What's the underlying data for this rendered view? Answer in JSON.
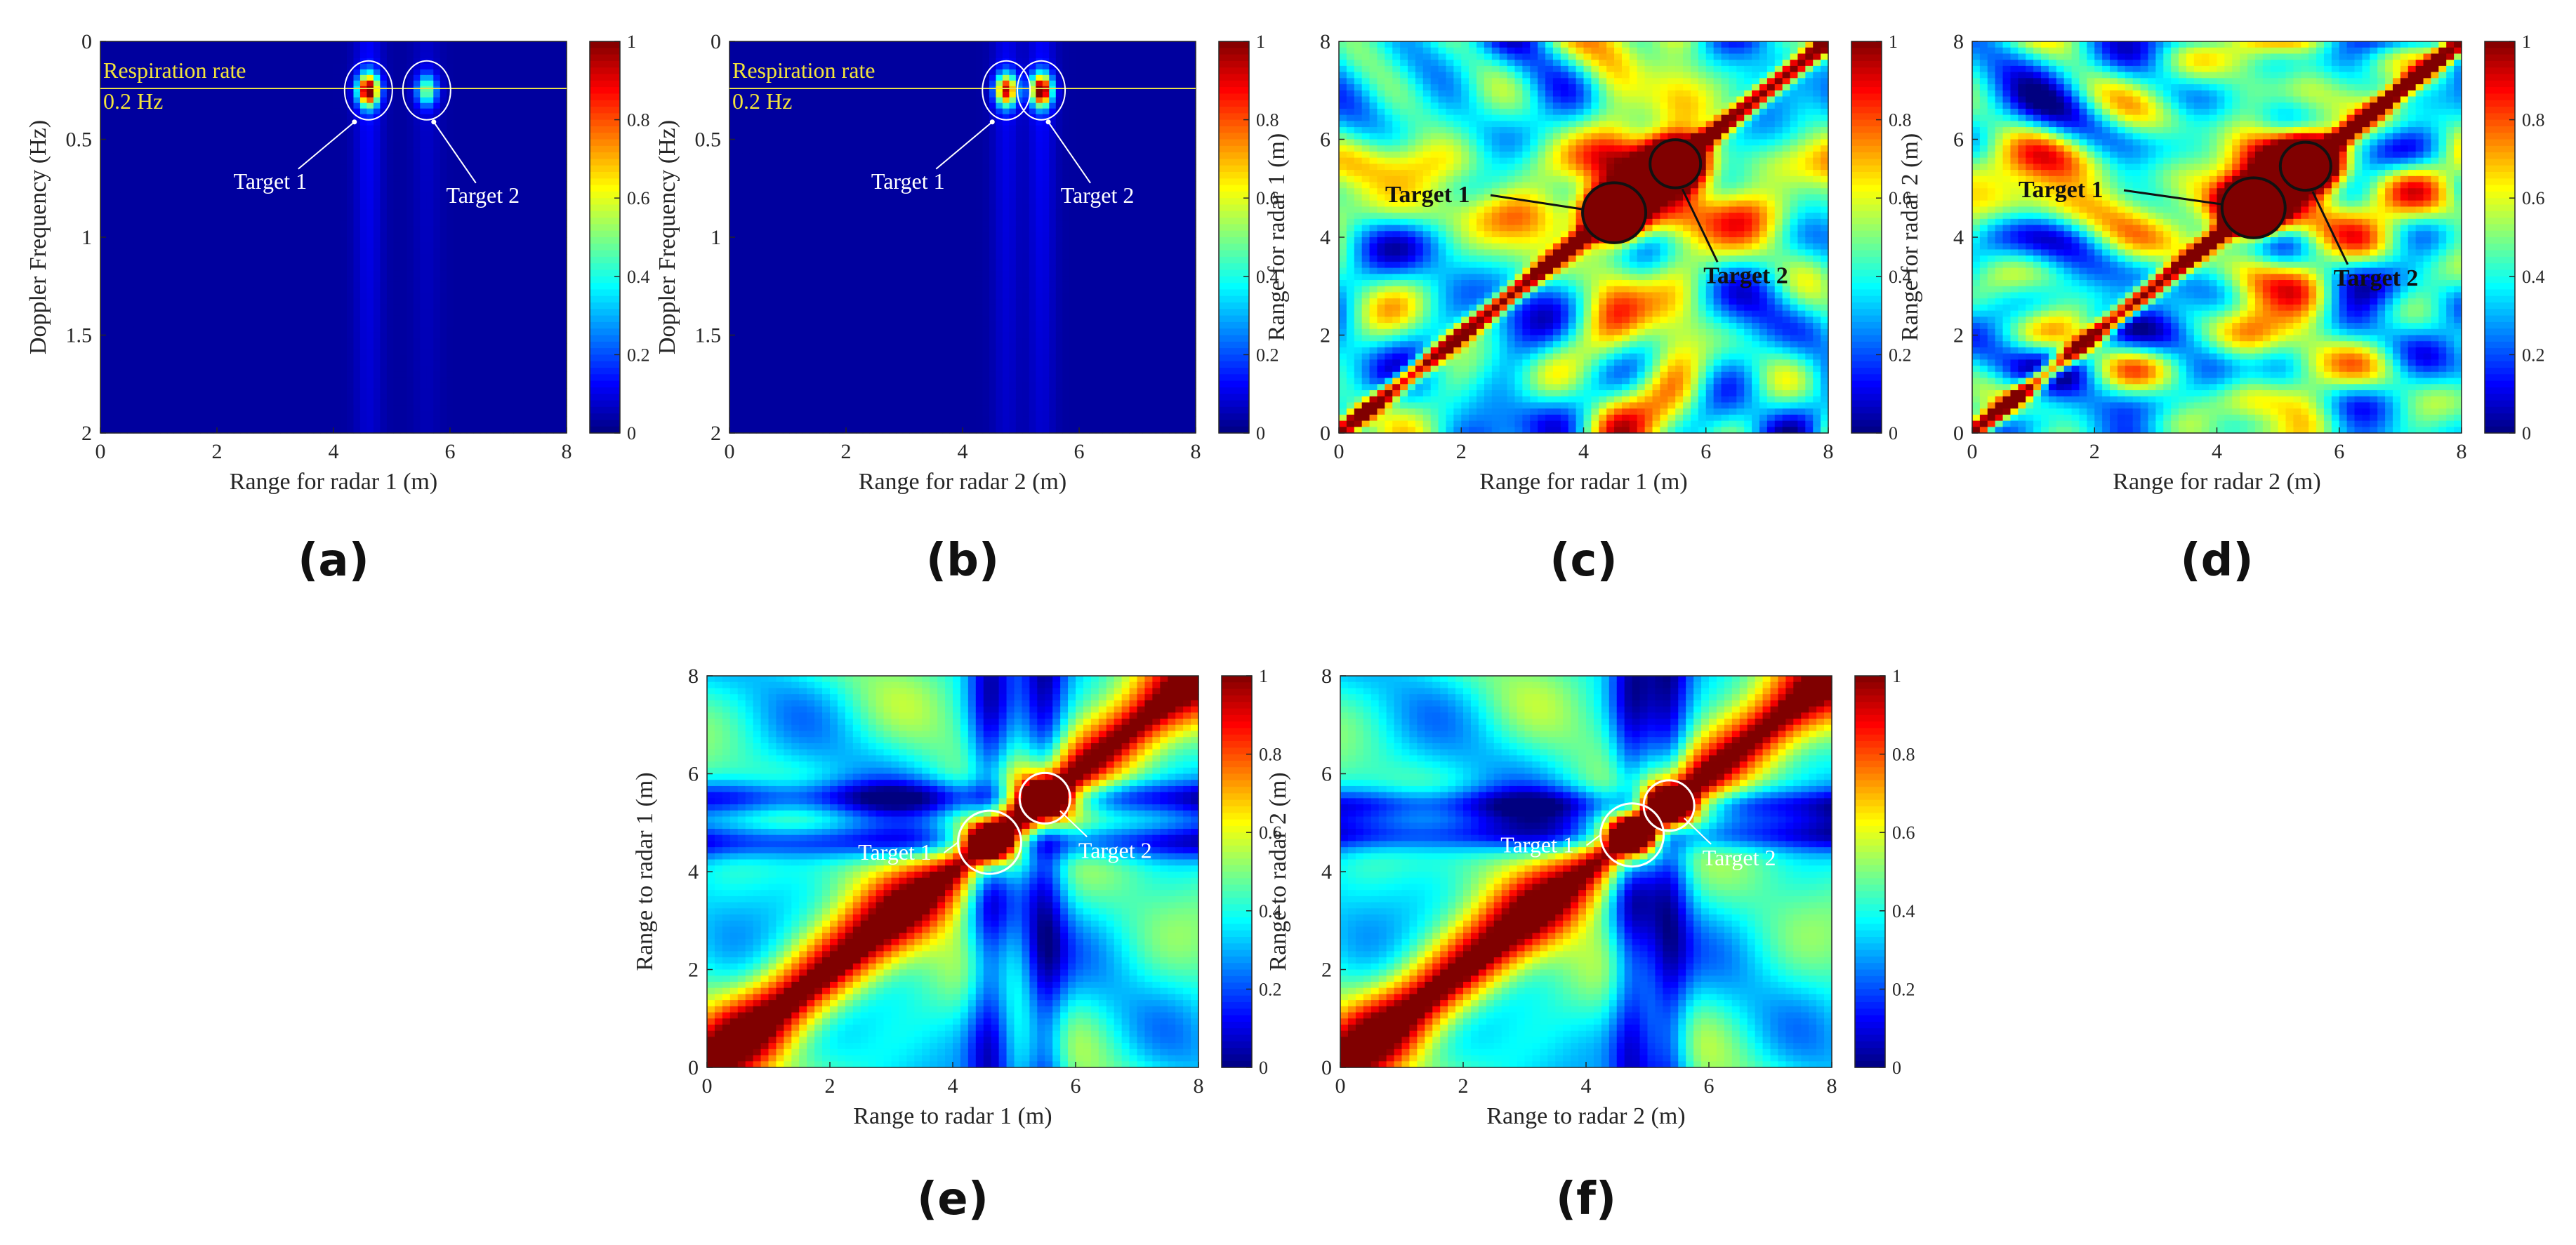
{
  "figure": {
    "panel_ids": [
      "a",
      "b",
      "c",
      "d",
      "e",
      "f"
    ]
  },
  "colormap": {
    "name": "jet",
    "stops": [
      "#00007f",
      "#0000ff",
      "#00ffff",
      "#ffff00",
      "#ff0000",
      "#7f0000"
    ],
    "ticks": [
      "0",
      "0.2",
      "0.4",
      "0.6",
      "0.8",
      "1"
    ]
  },
  "panels": {
    "a": {
      "caption": "(a)",
      "kind": "doppler",
      "title": "",
      "xlabel": "Range for radar 1 (m)",
      "ylabel": "Doppler Frequency (Hz)",
      "xlim": [
        0,
        8
      ],
      "ylim": [
        0,
        2
      ],
      "xticks": [
        "0",
        "2",
        "4",
        "6",
        "8"
      ],
      "yticks": [
        "0",
        "0.5",
        "1",
        "1.5",
        "2"
      ],
      "annotation_line": {
        "value_hz": 0.2,
        "label_line1": "Respiration rate",
        "label_line2": "0.2 Hz"
      },
      "targets": [
        {
          "label": "Target 1",
          "range_m": 4.6,
          "doppler_hz": 0.25,
          "intensity": 1.0
        },
        {
          "label": "Target 2",
          "range_m": 5.6,
          "doppler_hz": 0.25,
          "intensity": 0.45
        }
      ]
    },
    "b": {
      "caption": "(b)",
      "kind": "doppler",
      "title": "",
      "xlabel": "Range for radar 2 (m)",
      "ylabel": "Doppler Frequency (Hz)",
      "xlim": [
        0,
        8
      ],
      "ylim": [
        0,
        2
      ],
      "xticks": [
        "0",
        "2",
        "4",
        "6",
        "8"
      ],
      "yticks": [
        "0",
        "0.5",
        "1",
        "1.5",
        "2"
      ],
      "annotation_line": {
        "value_hz": 0.2,
        "label_line1": "Respiration rate",
        "label_line2": "0.2 Hz"
      },
      "targets": [
        {
          "label": "Target 1",
          "range_m": 4.75,
          "doppler_hz": 0.25,
          "intensity": 0.85
        },
        {
          "label": "Target 2",
          "range_m": 5.35,
          "doppler_hz": 0.25,
          "intensity": 1.0
        }
      ]
    },
    "c": {
      "caption": "(c)",
      "kind": "autocorr",
      "xlabel": "Range for radar 1 (m)",
      "ylabel": "Range for radar 1 (m)",
      "xlim": [
        0,
        8
      ],
      "ylim": [
        0,
        8
      ],
      "xticks": [
        "0",
        "2",
        "4",
        "6",
        "8"
      ],
      "yticks": [
        "0",
        "2",
        "4",
        "6",
        "8"
      ],
      "targets": [
        {
          "label": "Target 1",
          "x_m": 4.5,
          "y_m": 4.5
        },
        {
          "label": "Target 2",
          "x_m": 5.5,
          "y_m": 5.5
        }
      ]
    },
    "d": {
      "caption": "(d)",
      "kind": "autocorr",
      "xlabel": "Range for radar 2 (m)",
      "ylabel": "Range for radar 2 (m)",
      "xlim": [
        0,
        8
      ],
      "ylim": [
        0,
        8
      ],
      "xticks": [
        "0",
        "2",
        "4",
        "6",
        "8"
      ],
      "yticks": [
        "0",
        "2",
        "4",
        "6",
        "8"
      ],
      "targets": [
        {
          "label": "Target 1",
          "x_m": 4.6,
          "y_m": 4.6
        },
        {
          "label": "Target 2",
          "x_m": 5.45,
          "y_m": 5.45
        }
      ]
    },
    "e": {
      "caption": "(e)",
      "kind": "smooth",
      "xlabel": "Range to radar 1 (m)",
      "ylabel": "Range to radar 1 (m)",
      "xlim": [
        0,
        8
      ],
      "ylim": [
        0,
        8
      ],
      "xticks": [
        "0",
        "2",
        "4",
        "6",
        "8"
      ],
      "yticks": [
        "0",
        "2",
        "4",
        "6",
        "8"
      ],
      "targets": [
        {
          "label": "Target 1",
          "x_m": 4.6,
          "y_m": 4.6
        },
        {
          "label": "Target 2",
          "x_m": 5.5,
          "y_m": 5.5
        }
      ]
    },
    "f": {
      "caption": "(f)",
      "kind": "smooth",
      "xlabel": "Range to radar 2 (m)",
      "ylabel": "Range to radar 2 (m)",
      "xlim": [
        0,
        8
      ],
      "ylim": [
        0,
        8
      ],
      "xticks": [
        "0",
        "2",
        "4",
        "6",
        "8"
      ],
      "yticks": [
        "0",
        "2",
        "4",
        "6",
        "8"
      ],
      "targets": [
        {
          "label": "Target 1",
          "x_m": 4.75,
          "y_m": 4.75
        },
        {
          "label": "Target 2",
          "x_m": 5.35,
          "y_m": 5.35
        }
      ]
    }
  },
  "chart_data": [
    {
      "type": "heatmap",
      "panel": "a",
      "title": "",
      "xlabel": "Range for radar 1 (m)",
      "ylabel": "Doppler Frequency (Hz)",
      "xlim": [
        0,
        8
      ],
      "ylim": [
        2,
        0
      ],
      "clim": [
        0,
        1
      ],
      "colorbar_ticks": [
        0,
        0.2,
        0.4,
        0.6,
        0.8,
        1
      ],
      "annotations": [
        "Respiration rate",
        "0.2 Hz",
        "Target 1",
        "Target 2"
      ],
      "peaks": [
        {
          "label": "Target 1",
          "x": 4.6,
          "y": 0.25,
          "value": 1.0
        },
        {
          "label": "Target 2",
          "x": 5.6,
          "y": 0.25,
          "value": 0.45
        }
      ]
    },
    {
      "type": "heatmap",
      "panel": "b",
      "title": "",
      "xlabel": "Range for radar 2 (m)",
      "ylabel": "Doppler Frequency (Hz)",
      "xlim": [
        0,
        8
      ],
      "ylim": [
        2,
        0
      ],
      "clim": [
        0,
        1
      ],
      "colorbar_ticks": [
        0,
        0.2,
        0.4,
        0.6,
        0.8,
        1
      ],
      "annotations": [
        "Respiration rate",
        "0.2 Hz",
        "Target 1",
        "Target 2"
      ],
      "peaks": [
        {
          "label": "Target 1",
          "x": 4.75,
          "y": 0.25,
          "value": 0.85
        },
        {
          "label": "Target 2",
          "x": 5.35,
          "y": 0.25,
          "value": 1.0
        }
      ]
    },
    {
      "type": "heatmap",
      "panel": "c",
      "title": "",
      "xlabel": "Range for radar 1 (m)",
      "ylabel": "Range for radar 1 (m)",
      "xlim": [
        0,
        8
      ],
      "ylim": [
        0,
        8
      ],
      "clim": [
        0,
        1
      ],
      "colorbar_ticks": [
        0,
        0.2,
        0.4,
        0.6,
        0.8,
        1
      ],
      "peaks": [
        {
          "label": "Target 1",
          "x": 4.5,
          "y": 4.5,
          "value": 1.0
        },
        {
          "label": "Target 2",
          "x": 5.5,
          "y": 5.5,
          "value": 1.0
        }
      ]
    },
    {
      "type": "heatmap",
      "panel": "d",
      "title": "",
      "xlabel": "Range for radar 2 (m)",
      "ylabel": "Range for radar 2 (m)",
      "xlim": [
        0,
        8
      ],
      "ylim": [
        0,
        8
      ],
      "clim": [
        0,
        1
      ],
      "colorbar_ticks": [
        0,
        0.2,
        0.4,
        0.6,
        0.8,
        1
      ],
      "peaks": [
        {
          "label": "Target 1",
          "x": 4.6,
          "y": 4.6,
          "value": 1.0
        },
        {
          "label": "Target 2",
          "x": 5.45,
          "y": 5.45,
          "value": 1.0
        }
      ]
    },
    {
      "type": "heatmap",
      "panel": "e",
      "title": "",
      "xlabel": "Range to radar 1 (m)",
      "ylabel": "Range to radar 1 (m)",
      "xlim": [
        0,
        8
      ],
      "ylim": [
        0,
        8
      ],
      "clim": [
        0,
        1
      ],
      "colorbar_ticks": [
        0,
        0.2,
        0.4,
        0.6,
        0.8,
        1
      ],
      "peaks": [
        {
          "label": "Target 1",
          "x": 4.6,
          "y": 4.6,
          "value": 1.0
        },
        {
          "label": "Target 2",
          "x": 5.5,
          "y": 5.5,
          "value": 1.0
        }
      ]
    },
    {
      "type": "heatmap",
      "panel": "f",
      "title": "",
      "xlabel": "Range to radar 2 (m)",
      "ylabel": "Range to radar 2 (m)",
      "xlim": [
        0,
        8
      ],
      "ylim": [
        0,
        8
      ],
      "clim": [
        0,
        1
      ],
      "colorbar_ticks": [
        0,
        0.2,
        0.4,
        0.6,
        0.8,
        1
      ],
      "peaks": [
        {
          "label": "Target 1",
          "x": 4.75,
          "y": 4.75,
          "value": 1.0
        },
        {
          "label": "Target 2",
          "x": 5.35,
          "y": 5.35,
          "value": 1.0
        }
      ]
    }
  ]
}
